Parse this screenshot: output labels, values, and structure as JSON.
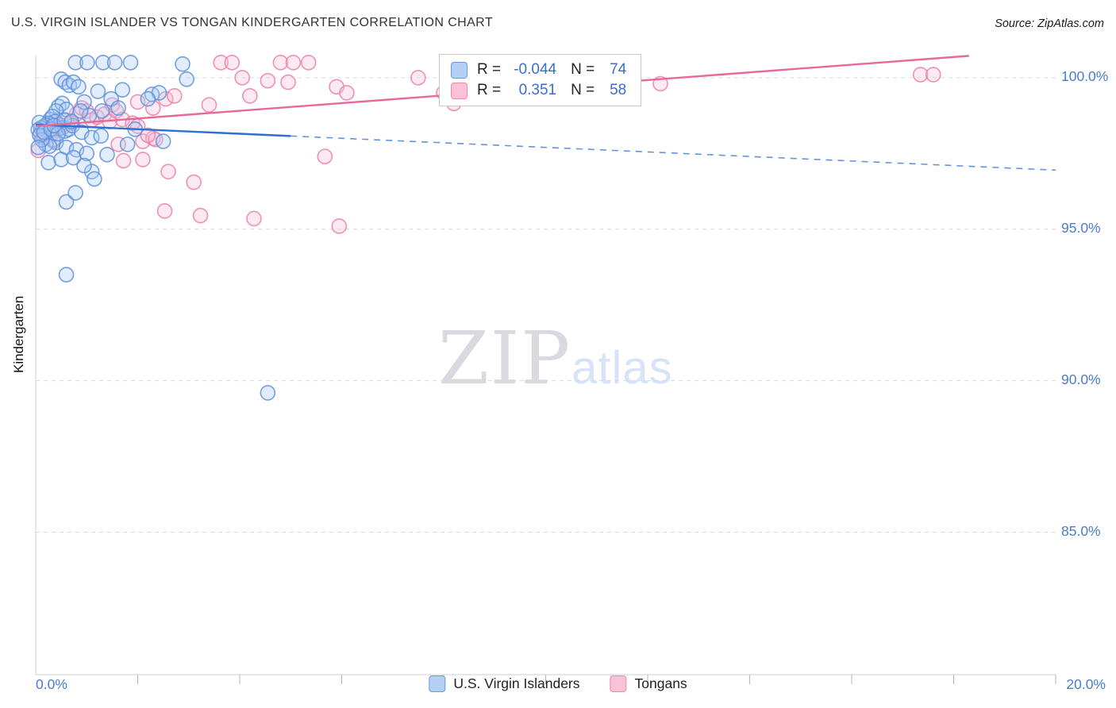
{
  "header": {
    "title": "U.S. VIRGIN ISLANDER VS TONGAN KINDERGARTEN CORRELATION CHART",
    "source": "Source: ZipAtlas.com"
  },
  "watermark": {
    "zip": "ZIP",
    "atlas": "atlas"
  },
  "stats": {
    "rows": [
      {
        "series": "U.S. Virgin Islanders",
        "r_label": "R =",
        "r_value": "-0.044",
        "n_label": "N =",
        "n_value": "74"
      },
      {
        "series": "Tongans",
        "r_label": "R =",
        "r_value": "0.351",
        "n_label": "N =",
        "n_value": "58"
      }
    ]
  },
  "legend": {
    "items": [
      {
        "label": "U.S. Virgin Islanders"
      },
      {
        "label": "Tongans"
      }
    ]
  },
  "colors": {
    "blue_fill": "#A9CCF5",
    "blue_stroke": "#5E8FD8",
    "blue_line": "#2E6FD0",
    "pink_fill": "#FAC0D6",
    "pink_stroke": "#EC7FA8",
    "pink_line": "#E8689A",
    "axis_text": "#4A7CC9",
    "grid": "#D9D9DE"
  },
  "chart_data": {
    "type": "scatter",
    "title": "U.S. VIRGIN ISLANDER VS TONGAN KINDERGARTEN CORRELATION CHART",
    "xlabel": "",
    "ylabel": "Kindergarten",
    "axis": {
      "xmin": 0,
      "xmax": 20,
      "ymin": 80.3,
      "ymax": 100.73
    },
    "yticks": [
      {
        "label": "100.0%",
        "value": 100
      },
      {
        "label": "95.0%",
        "value": 95
      },
      {
        "label": "90.0%",
        "value": 90
      },
      {
        "label": "85.0%",
        "value": 85
      }
    ],
    "xticks": {
      "values": [
        2,
        4,
        6,
        8,
        10,
        12,
        14,
        16,
        18,
        20
      ],
      "left_label": "0.0%",
      "right_label": "20.0%"
    },
    "series": [
      {
        "id": "virgin-islanders",
        "name": "U.S. Virgin Islanders",
        "R": -0.044,
        "N": 74,
        "fill": "#A9CCF5",
        "stroke": "#5E8FD8",
        "points": [
          [
            0.78,
            100.5
          ],
          [
            1.01,
            100.5
          ],
          [
            1.32,
            100.5
          ],
          [
            1.55,
            100.5
          ],
          [
            1.86,
            100.5
          ],
          [
            2.88,
            100.45
          ],
          [
            0.5,
            99.95
          ],
          [
            0.58,
            99.85
          ],
          [
            0.66,
            99.75
          ],
          [
            0.74,
            99.85
          ],
          [
            0.84,
            99.7
          ],
          [
            2.96,
            99.95
          ],
          [
            1.22,
            99.55
          ],
          [
            1.48,
            99.3
          ],
          [
            1.7,
            99.6
          ],
          [
            2.28,
            99.45
          ],
          [
            2.42,
            99.5
          ],
          [
            2.2,
            99.3
          ],
          [
            0.95,
            99.2
          ],
          [
            0.45,
            99.05
          ],
          [
            0.52,
            99.15
          ],
          [
            0.6,
            98.95
          ],
          [
            0.4,
            98.9
          ],
          [
            1.3,
            98.9
          ],
          [
            1.62,
            99.0
          ],
          [
            1.05,
            98.75
          ],
          [
            0.28,
            98.62
          ],
          [
            0.33,
            98.72
          ],
          [
            0.38,
            98.55
          ],
          [
            0.24,
            98.5
          ],
          [
            0.2,
            98.44
          ],
          [
            0.15,
            98.38
          ],
          [
            0.1,
            98.34
          ],
          [
            0.07,
            98.52
          ],
          [
            0.05,
            98.28
          ],
          [
            0.47,
            98.45
          ],
          [
            0.52,
            98.34
          ],
          [
            0.58,
            98.24
          ],
          [
            0.65,
            98.3
          ],
          [
            0.72,
            98.42
          ],
          [
            0.9,
            98.2
          ],
          [
            1.1,
            98.02
          ],
          [
            1.28,
            98.08
          ],
          [
            0.34,
            97.95
          ],
          [
            0.4,
            97.86
          ],
          [
            0.2,
            97.8
          ],
          [
            0.27,
            97.74
          ],
          [
            0.6,
            97.7
          ],
          [
            0.8,
            97.62
          ],
          [
            1.0,
            97.5
          ],
          [
            1.4,
            97.46
          ],
          [
            1.8,
            97.8
          ],
          [
            2.5,
            97.9
          ],
          [
            0.25,
            97.2
          ],
          [
            0.5,
            97.3
          ],
          [
            0.74,
            97.36
          ],
          [
            1.1,
            96.9
          ],
          [
            1.15,
            96.66
          ],
          [
            0.95,
            97.1
          ],
          [
            0.12,
            97.95
          ],
          [
            0.08,
            98.1
          ],
          [
            0.05,
            97.7
          ],
          [
            0.16,
            98.2
          ],
          [
            0.3,
            98.3
          ],
          [
            0.44,
            98.15
          ],
          [
            0.36,
            98.42
          ],
          [
            0.56,
            98.6
          ],
          [
            0.7,
            98.55
          ],
          [
            0.88,
            98.9
          ],
          [
            1.95,
            98.3
          ],
          [
            0.6,
            95.9
          ],
          [
            0.78,
            96.2
          ],
          [
            0.6,
            93.5
          ],
          [
            4.55,
            89.6
          ]
        ]
      },
      {
        "id": "tongans",
        "name": "Tongans",
        "R": 0.351,
        "N": 58,
        "fill": "#FAC0D6",
        "stroke": "#EC7FA8",
        "points": [
          [
            0.05,
            97.6
          ],
          [
            0.1,
            98.2
          ],
          [
            0.15,
            98.02
          ],
          [
            0.2,
            98.3
          ],
          [
            0.3,
            98.12
          ],
          [
            0.35,
            97.9
          ],
          [
            0.42,
            98.26
          ],
          [
            0.5,
            98.4
          ],
          [
            0.6,
            98.6
          ],
          [
            0.7,
            98.5
          ],
          [
            0.8,
            98.8
          ],
          [
            0.9,
            99.0
          ],
          [
            1.0,
            98.9
          ],
          [
            1.1,
            98.6
          ],
          [
            1.2,
            98.7
          ],
          [
            1.35,
            98.8
          ],
          [
            1.45,
            98.55
          ],
          [
            1.5,
            99.1
          ],
          [
            1.58,
            98.9
          ],
          [
            1.7,
            98.62
          ],
          [
            1.9,
            98.5
          ],
          [
            2.0,
            98.4
          ],
          [
            2.1,
            97.9
          ],
          [
            2.3,
            98.0
          ],
          [
            1.62,
            97.8
          ],
          [
            2.1,
            97.3
          ],
          [
            1.72,
            97.26
          ],
          [
            2.55,
            99.3
          ],
          [
            2.72,
            99.4
          ],
          [
            3.4,
            99.1
          ],
          [
            2.35,
            97.96
          ],
          [
            2.2,
            98.1
          ],
          [
            2.0,
            99.2
          ],
          [
            2.3,
            99.0
          ],
          [
            3.63,
            100.5
          ],
          [
            3.85,
            100.5
          ],
          [
            4.05,
            100.0
          ],
          [
            4.2,
            99.4
          ],
          [
            4.55,
            99.9
          ],
          [
            4.8,
            100.5
          ],
          [
            5.05,
            100.5
          ],
          [
            5.35,
            100.5
          ],
          [
            4.95,
            99.85
          ],
          [
            5.9,
            99.7
          ],
          [
            6.1,
            99.5
          ],
          [
            7.5,
            100.0
          ],
          [
            8.2,
            99.15
          ],
          [
            12.25,
            99.8
          ],
          [
            17.35,
            100.1
          ],
          [
            17.6,
            100.1
          ],
          [
            2.6,
            96.9
          ],
          [
            3.1,
            96.55
          ],
          [
            2.53,
            95.6
          ],
          [
            3.23,
            95.45
          ],
          [
            4.28,
            95.35
          ],
          [
            5.95,
            95.1
          ],
          [
            5.67,
            97.4
          ],
          [
            8.0,
            99.5
          ]
        ]
      }
    ],
    "trendlines": [
      {
        "series": "U.S. Virgin Islanders",
        "color": "#2E6FD0",
        "x1": 0,
        "y1": 98.45,
        "x2": 20,
        "y2": 96.95,
        "solid_until": 5
      },
      {
        "series": "Tongans",
        "color": "#E8689A",
        "x1": 0,
        "y1": 98.4,
        "x2": 18.3,
        "y2": 100.72,
        "solid_until": 18.3
      }
    ]
  }
}
